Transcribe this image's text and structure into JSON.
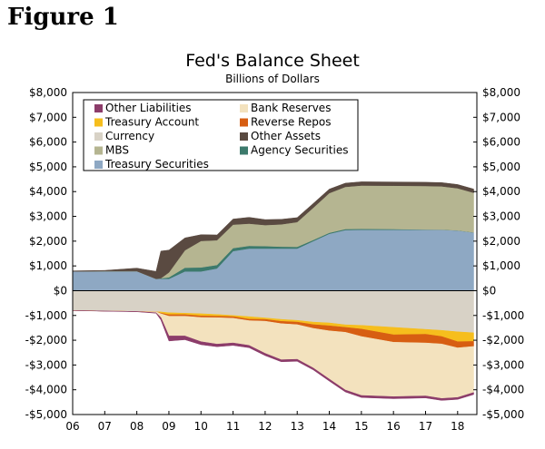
{
  "figure_label": "Figure 1",
  "chart_data": {
    "type": "area",
    "title": "Fed's Balance Sheet",
    "subtitle": "Billions of Dollars",
    "xlabel": "",
    "ylabel": "",
    "x": [
      2006.0,
      2007.0,
      2008.0,
      2008.6,
      2008.75,
      2009.0,
      2009.5,
      2010.0,
      2010.5,
      2011.0,
      2011.5,
      2012.0,
      2012.5,
      2013.0,
      2013.5,
      2014.0,
      2014.5,
      2015.0,
      2016.0,
      2017.0,
      2017.5,
      2018.0,
      2018.5
    ],
    "xlim": [
      2006,
      2018.6
    ],
    "x_ticks": [
      2006,
      2007,
      2008,
      2009,
      2010,
      2011,
      2012,
      2013,
      2014,
      2015,
      2016,
      2017,
      2018
    ],
    "x_tick_labels": [
      "06",
      "07",
      "08",
      "09",
      "10",
      "11",
      "12",
      "13",
      "14",
      "15",
      "16",
      "17",
      "18"
    ],
    "ylim": [
      -5000,
      8000
    ],
    "y_ticks": [
      -5000,
      -4000,
      -3000,
      -2000,
      -1000,
      0,
      1000,
      2000,
      3000,
      4000,
      5000,
      6000,
      7000,
      8000
    ],
    "y_tick_labels": [
      "-$5,000",
      "-$4,000",
      "-$3,000",
      "-$2,000",
      "-$1,000",
      "$0",
      "$1,000",
      "$2,000",
      "$3,000",
      "$4,000",
      "$5,000",
      "$6,000",
      "$7,000",
      "$8,000"
    ],
    "assets": [
      {
        "name": "Treasury Securities",
        "color": "#8ea8c3",
        "values": [
          780,
          790,
          790,
          480,
          480,
          480,
          780,
          780,
          900,
          1600,
          1700,
          1700,
          1700,
          1700,
          2000,
          2300,
          2450,
          2460,
          2460,
          2460,
          2460,
          2430,
          2350
        ]
      },
      {
        "name": "Agency Securities",
        "color": "#3c7a6c",
        "values": [
          0,
          0,
          0,
          0,
          20,
          60,
          150,
          160,
          140,
          120,
          110,
          100,
          80,
          70,
          50,
          40,
          40,
          35,
          30,
          10,
          5,
          5,
          2
        ]
      },
      {
        "name": "MBS",
        "color": "#b5b591",
        "values": [
          0,
          0,
          0,
          0,
          0,
          200,
          700,
          1070,
          1000,
          950,
          900,
          850,
          900,
          1000,
          1300,
          1600,
          1700,
          1750,
          1750,
          1760,
          1750,
          1700,
          1600
        ]
      },
      {
        "name": "Other Assets",
        "color": "#5a4a41",
        "values": [
          20,
          30,
          120,
          300,
          1100,
          900,
          500,
          250,
          210,
          220,
          250,
          220,
          200,
          180,
          170,
          160,
          150,
          150,
          150,
          150,
          150,
          150,
          150
        ]
      }
    ],
    "liabilities": [
      {
        "name": "Currency",
        "color": "#d8d2c6",
        "values": [
          -800,
          -820,
          -840,
          -850,
          -860,
          -890,
          -910,
          -930,
          -960,
          -1000,
          -1050,
          -1100,
          -1160,
          -1200,
          -1270,
          -1300,
          -1380,
          -1400,
          -1480,
          -1560,
          -1600,
          -1660,
          -1700
        ]
      },
      {
        "name": "Treasury Account",
        "color": "#f6be1d",
        "values": [
          0,
          0,
          0,
          0,
          -50,
          -80,
          -60,
          -90,
          -70,
          -50,
          -100,
          -60,
          -80,
          -70,
          -100,
          -120,
          -100,
          -150,
          -300,
          -200,
          -250,
          -400,
          -350
        ]
      },
      {
        "name": "Reverse Repos",
        "color": "#d75e12",
        "values": [
          0,
          0,
          0,
          0,
          -20,
          -60,
          -60,
          -60,
          -60,
          -60,
          -60,
          -70,
          -90,
          -100,
          -150,
          -200,
          -200,
          -300,
          -300,
          -350,
          -300,
          -250,
          -200
        ]
      },
      {
        "name": "Bank Reserves",
        "color": "#f3e2be",
        "values": [
          0,
          0,
          0,
          -40,
          -150,
          -800,
          -800,
          -980,
          -1070,
          -1000,
          -1000,
          -1300,
          -1460,
          -1400,
          -1600,
          -1950,
          -2330,
          -2380,
          -2200,
          -2140,
          -2200,
          -2000,
          -1860
        ]
      },
      {
        "name": "Other Liabilities",
        "color": "#8c3c6a",
        "values": [
          0,
          -10,
          -10,
          -20,
          -100,
          -200,
          -150,
          -120,
          -100,
          -100,
          -90,
          -90,
          -80,
          -80,
          -80,
          -80,
          -80,
          -80,
          -80,
          -80,
          -80,
          -80,
          -80
        ]
      }
    ],
    "legend": {
      "placement": "top-left",
      "entries": [
        {
          "name": "Other Liabilities",
          "color": "#8c3c6a"
        },
        {
          "name": "Bank Reserves",
          "color": "#f3e2be"
        },
        {
          "name": "Treasury Account",
          "color": "#f6be1d"
        },
        {
          "name": "Reverse Repos",
          "color": "#d75e12"
        },
        {
          "name": "Currency",
          "color": "#d8d2c6"
        },
        {
          "name": "Other Assets",
          "color": "#5a4a41"
        },
        {
          "name": "MBS",
          "color": "#b5b591"
        },
        {
          "name": "Agency Securities",
          "color": "#3c7a6c"
        },
        {
          "name": "Treasury Securities",
          "color": "#8ea8c3"
        }
      ]
    },
    "grid": false
  }
}
